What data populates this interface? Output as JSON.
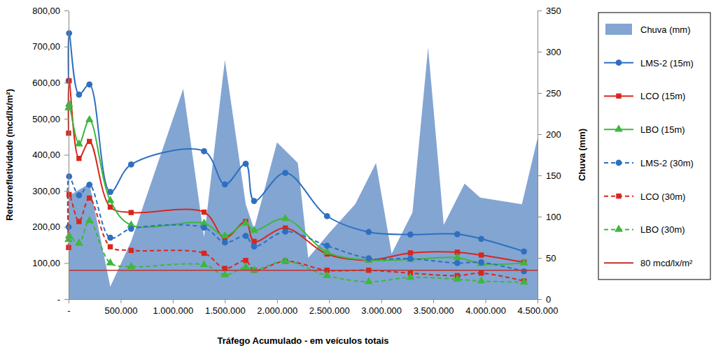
{
  "chart_data": {
    "type": "line",
    "x_label": "Tráfego Acumulado - em veículos totais",
    "y_label": "Retrorrefletividade (mcd/lx/m²)",
    "y2_label": "Chuva (mm)",
    "legend": "right",
    "grid": false,
    "xlim": [
      0,
      4500000
    ],
    "xticks": [
      {
        "value": 0,
        "label": "-"
      },
      {
        "value": 500000,
        "label": "500.000"
      },
      {
        "value": 1000000,
        "label": "1.000.000"
      },
      {
        "value": 1500000,
        "label": "1.500.000"
      },
      {
        "value": 2000000,
        "label": "2.000.000"
      },
      {
        "value": 2500000,
        "label": "2.500.000"
      },
      {
        "value": 3000000,
        "label": "3.000.000"
      },
      {
        "value": 3500000,
        "label": "3.500.000"
      },
      {
        "value": 4000000,
        "label": "4.000.000"
      },
      {
        "value": 4500000,
        "label": "4.500.000"
      }
    ],
    "ylim": [
      0,
      800
    ],
    "yticks": [
      {
        "value": 0,
        "label": "-"
      },
      {
        "value": 100,
        "label": "100,00"
      },
      {
        "value": 200,
        "label": "200,00"
      },
      {
        "value": 300,
        "label": "300,00"
      },
      {
        "value": 400,
        "label": "400,00"
      },
      {
        "value": 500,
        "label": "500,00"
      },
      {
        "value": 600,
        "label": "600,00"
      },
      {
        "value": 700,
        "label": "700,00"
      },
      {
        "value": 800,
        "label": "800,00"
      }
    ],
    "y2lim": [
      0,
      350
    ],
    "y2ticks": [
      0,
      50,
      100,
      150,
      200,
      250,
      300,
      350
    ],
    "x": [
      0,
      5000,
      100000,
      200000,
      400000,
      600000,
      1300000,
      1500000,
      1700000,
      1780000,
      2080000,
      2480000,
      2880000,
      3280000,
      3730000,
      3960000,
      4370000
    ],
    "series": [
      {
        "name": "Chuva (mm)",
        "type": "area",
        "axis": "y2",
        "color": "#83a5d2",
        "marker": "none",
        "line_style": "solid",
        "x": [
          0,
          200000,
          400000,
          600000,
          1100000,
          1300000,
          1500000,
          1700000,
          1780000,
          2000000,
          2200000,
          2300000,
          2500000,
          2750000,
          2950000,
          3100000,
          3300000,
          3450000,
          3600000,
          3800000,
          3950000,
          4350000,
          4500000
        ],
        "values": [
          125,
          140,
          15,
          70,
          255,
          75,
          290,
          115,
          85,
          190,
          165,
          50,
          80,
          115,
          165,
          55,
          105,
          305,
          90,
          140,
          123,
          115,
          195
        ]
      },
      {
        "name": "LMS-2 (15m)",
        "type": "line",
        "color": "#2e6fc0",
        "marker": "circle",
        "line_style": "solid",
        "values": [
          605,
          737,
          567,
          595,
          297,
          373,
          410,
          318,
          375,
          272,
          350,
          230,
          186,
          179,
          180,
          167,
          132
        ]
      },
      {
        "name": "LCO (15m)",
        "type": "line",
        "color": "#d9261c",
        "marker": "square",
        "line_style": "solid",
        "values": [
          460,
          605,
          390,
          437,
          255,
          240,
          241,
          170,
          215,
          160,
          197,
          125,
          108,
          128,
          130,
          122,
          102
        ]
      },
      {
        "name": "LBO (15m)",
        "type": "line",
        "color": "#3cb83c",
        "marker": "triangle",
        "line_style": "solid",
        "values": [
          530,
          540,
          430,
          497,
          273,
          205,
          210,
          175,
          210,
          190,
          223,
          130,
          108,
          110,
          115,
          98,
          100
        ]
      },
      {
        "name": "LMS-2 (30m)",
        "type": "line",
        "color": "#2e6fc0",
        "marker": "circle",
        "line_style": "dashed",
        "values": [
          200,
          340,
          288,
          317,
          170,
          195,
          198,
          157,
          175,
          146,
          187,
          148,
          113,
          112,
          100,
          102,
          77
        ]
      },
      {
        "name": "LCO (30m)",
        "type": "line",
        "color": "#d9261c",
        "marker": "square",
        "line_style": "dashed",
        "values": [
          143,
          290,
          215,
          280,
          145,
          135,
          127,
          85,
          107,
          80,
          105,
          80,
          80,
          72,
          65,
          72,
          50
        ]
      },
      {
        "name": "LBO (30m)",
        "type": "line",
        "color": "#3cb83c",
        "marker": "triangle",
        "line_style": "dashed",
        "values": [
          165,
          175,
          155,
          217,
          100,
          90,
          95,
          67,
          88,
          80,
          105,
          65,
          48,
          60,
          55,
          50,
          47
        ]
      },
      {
        "name": "80 mcd/lx/m²",
        "type": "line",
        "color": "#c0302c",
        "marker": "none",
        "line_style": "solid",
        "x": [
          0,
          4500000
        ],
        "values": [
          80,
          80
        ]
      }
    ]
  }
}
